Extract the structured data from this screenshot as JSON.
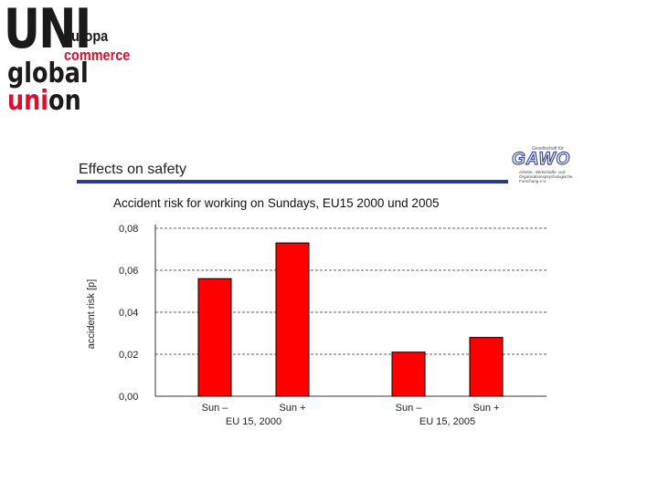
{
  "logo": {
    "uni": "UNI",
    "global": "global",
    "union_prefix": "uni",
    "union_suffix": "on",
    "line1": "europa",
    "line2": "commerce"
  },
  "slide": {
    "title": "Effects on safety"
  },
  "gawo": {
    "top": "Gesellschaft für",
    "word": "GAWO",
    "sub": "Arbeits-, Wirtschafts- und Organisationspsychologische Forschung e.V."
  },
  "chart_data": {
    "type": "bar",
    "title": "Accident risk for working on Sundays, EU15 2000 und 2005",
    "ylabel": "accident risk [p]",
    "xlabel": "",
    "ylim": [
      0,
      0.08
    ],
    "yticks": [
      "0,00",
      "0,02",
      "0,04",
      "0,06",
      "0,08"
    ],
    "grid": true,
    "categories": [
      "Sun –",
      "Sun +",
      "Sun –",
      "Sun +"
    ],
    "groups": [
      "EU 15, 2000",
      "EU 15, 2005"
    ],
    "values": [
      0.056,
      0.073,
      0.021,
      0.028
    ],
    "bar_color": "#ff0000"
  }
}
